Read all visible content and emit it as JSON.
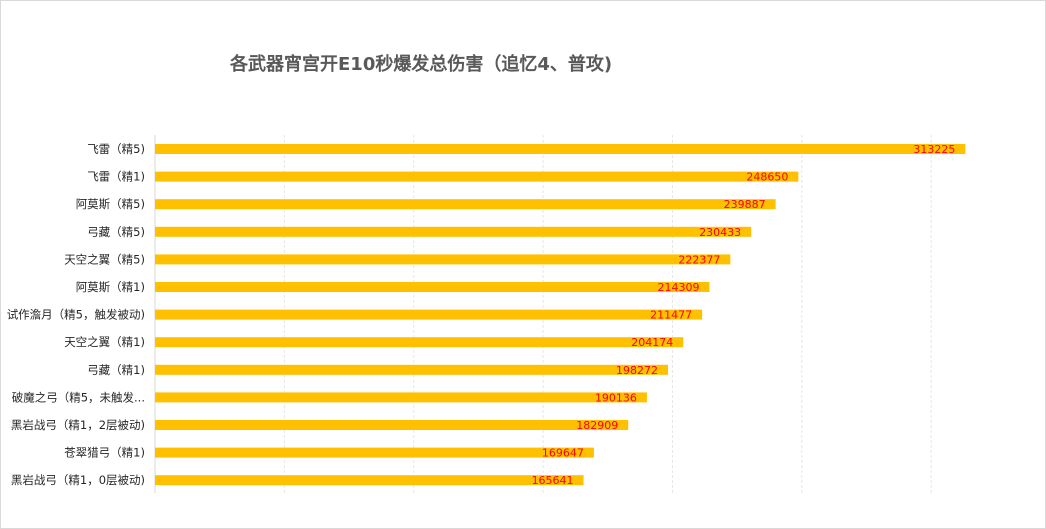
{
  "chart_data": {
    "type": "bar",
    "orientation": "horizontal",
    "title": "各武器宵宫开E10秒爆发总伤害（追忆4、普攻)",
    "categories": [
      "飞雷（精5)",
      "飞雷（精1)",
      "阿莫斯（精5)",
      "弓藏（精5)",
      "天空之翼（精5)",
      "阿莫斯（精1)",
      "试作澹月（精5，触发被动)",
      "天空之翼（精1)",
      "弓藏（精1)",
      "破魔之弓（精5，未触发...",
      "黑岩战弓（精1，2层被动)",
      "苍翠猎弓（精1)",
      "黑岩战弓（精1，0层被动)"
    ],
    "values": [
      313225,
      248650,
      239887,
      230433,
      222377,
      214309,
      211477,
      204174,
      198272,
      190136,
      182909,
      169647,
      165641
    ],
    "xlim": [
      0,
      350000
    ],
    "grid": "vertical",
    "bar_color": "#ffc000",
    "label_color": "#ff0000",
    "legend": "none"
  }
}
